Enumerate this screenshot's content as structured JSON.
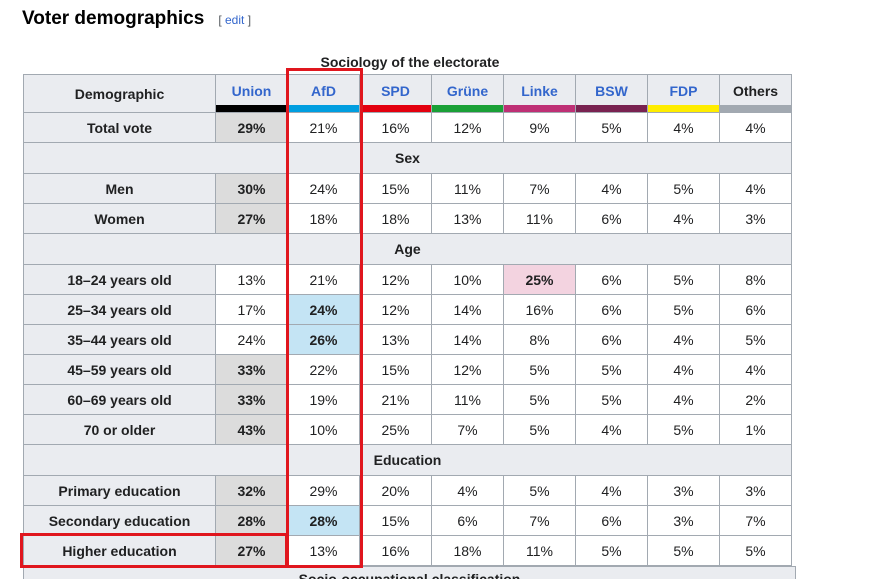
{
  "heading": "Voter demographics",
  "edit": {
    "open": "[",
    "label": "edit",
    "close": "]"
  },
  "caption": "Sociology of the electorate",
  "corner_label": "Demographic",
  "parties": [
    {
      "label": "Union",
      "link": true,
      "color": "#000000"
    },
    {
      "label": "AfD",
      "link": true,
      "color": "#009ee0"
    },
    {
      "label": "SPD",
      "link": true,
      "color": "#e3000f"
    },
    {
      "label": "Grüne",
      "link": true,
      "color": "#1aa037"
    },
    {
      "label": "Linke",
      "link": true,
      "color": "#be3075"
    },
    {
      "label": "BSW",
      "link": true,
      "color": "#792351"
    },
    {
      "label": "FDP",
      "link": true,
      "color": "#ffed00"
    },
    {
      "label": "Others",
      "link": false,
      "color": "#a2a9b1"
    }
  ],
  "rows": [
    {
      "type": "data",
      "label": "Total vote",
      "values": [
        "29%",
        "21%",
        "16%",
        "12%",
        "9%",
        "5%",
        "4%",
        "4%"
      ],
      "lead": 0
    },
    {
      "type": "section",
      "label": "Sex"
    },
    {
      "type": "data",
      "label": "Men",
      "values": [
        "30%",
        "24%",
        "15%",
        "11%",
        "7%",
        "4%",
        "5%",
        "4%"
      ],
      "lead": 0
    },
    {
      "type": "data",
      "label": "Women",
      "values": [
        "27%",
        "18%",
        "18%",
        "13%",
        "11%",
        "6%",
        "4%",
        "3%"
      ],
      "lead": 0
    },
    {
      "type": "section",
      "label": "Age"
    },
    {
      "type": "data",
      "label": "18–24 years old",
      "values": [
        "13%",
        "21%",
        "12%",
        "10%",
        "25%",
        "6%",
        "5%",
        "8%"
      ],
      "lead": 4
    },
    {
      "type": "data",
      "label": "25–34 years old",
      "values": [
        "17%",
        "24%",
        "12%",
        "14%",
        "16%",
        "6%",
        "5%",
        "6%"
      ],
      "lead": 1
    },
    {
      "type": "data",
      "label": "35–44 years old",
      "values": [
        "24%",
        "26%",
        "13%",
        "14%",
        "8%",
        "6%",
        "4%",
        "5%"
      ],
      "lead": 1
    },
    {
      "type": "data",
      "label": "45–59 years old",
      "values": [
        "33%",
        "22%",
        "15%",
        "12%",
        "5%",
        "5%",
        "4%",
        "4%"
      ],
      "lead": 0
    },
    {
      "type": "data",
      "label": "60–69 years old",
      "values": [
        "33%",
        "19%",
        "21%",
        "11%",
        "5%",
        "5%",
        "4%",
        "2%"
      ],
      "lead": 0
    },
    {
      "type": "data",
      "label": "70 or older",
      "values": [
        "43%",
        "10%",
        "25%",
        "7%",
        "5%",
        "4%",
        "5%",
        "1%"
      ],
      "lead": 0
    },
    {
      "type": "section",
      "label": "Education"
    },
    {
      "type": "data",
      "label": "Primary education",
      "values": [
        "32%",
        "29%",
        "20%",
        "4%",
        "5%",
        "4%",
        "3%",
        "3%"
      ],
      "lead": 0
    },
    {
      "type": "data",
      "label": "Secondary education",
      "values": [
        "28%",
        "28%",
        "15%",
        "6%",
        "7%",
        "6%",
        "3%",
        "7%"
      ],
      "lead": 0,
      "also_lead": 1
    },
    {
      "type": "data",
      "label": "Higher education",
      "values": [
        "27%",
        "13%",
        "16%",
        "18%",
        "11%",
        "5%",
        "5%",
        "5%"
      ],
      "lead": 0
    }
  ],
  "next_section": "Socio-occupational classification",
  "colors": {
    "lead_default": "#dcdcdc",
    "lead_afd": "#c4e4f4",
    "lead_linke": "#f3d3e0",
    "annotation_red": "#e0161e"
  }
}
